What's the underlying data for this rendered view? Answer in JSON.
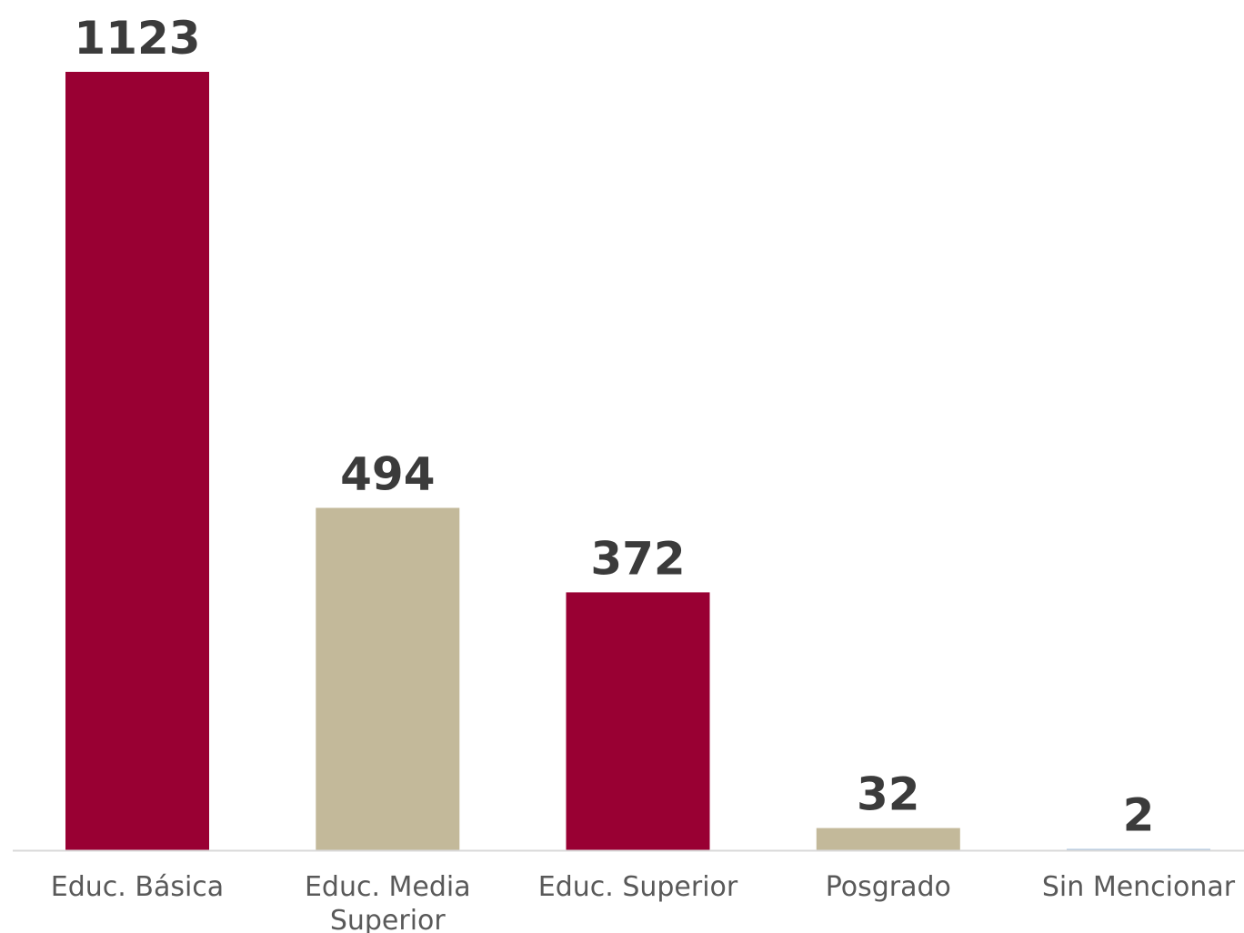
{
  "chart_data": {
    "type": "bar",
    "categories": [
      [
        "Educ. Básica"
      ],
      [
        "Educ. Media",
        "Superior"
      ],
      [
        "Educ. Superior"
      ],
      [
        "Posgrado"
      ],
      [
        "Sin Mencionar"
      ]
    ],
    "values": [
      1123,
      494,
      372,
      32,
      2
    ],
    "bar_colors": [
      "#990033",
      "#c3b99a",
      "#990033",
      "#c3b99a",
      "#a9c4df"
    ],
    "ylim": [
      0,
      1123
    ],
    "grid": false,
    "legend": "none",
    "data_labels": true
  }
}
